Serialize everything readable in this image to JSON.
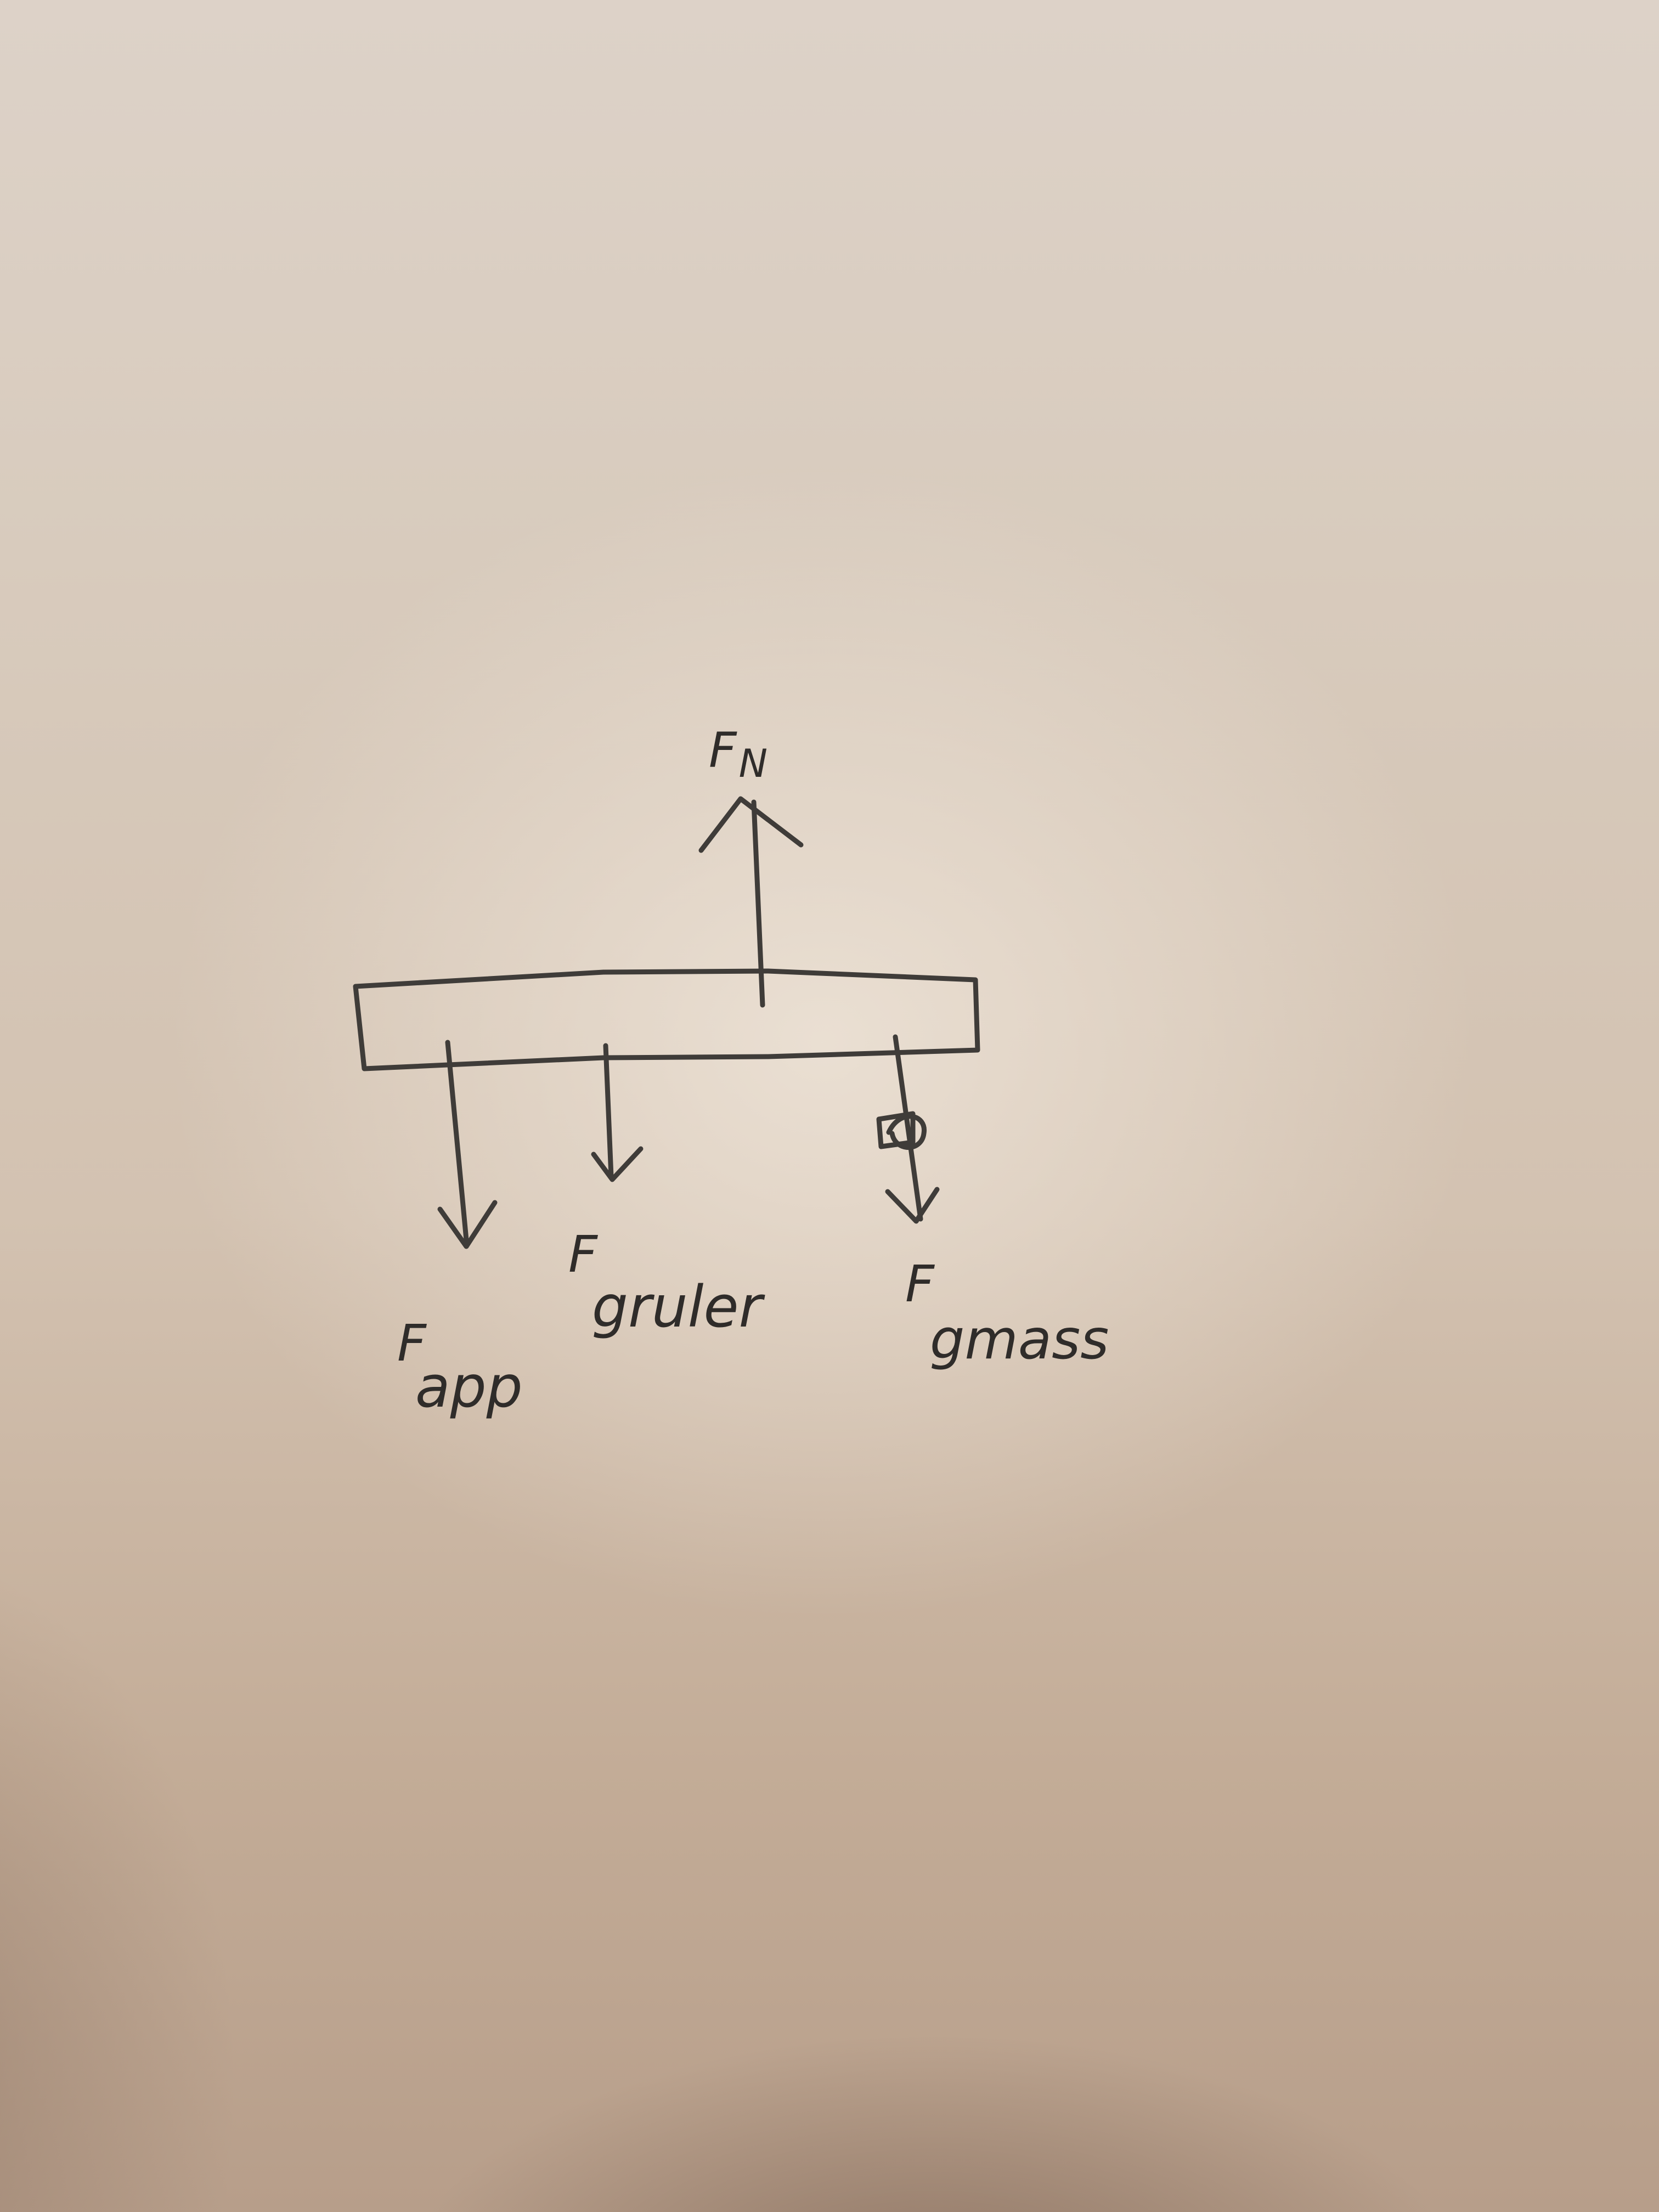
{
  "labels": {
    "normal_force": {
      "main": "F",
      "sub": "N"
    },
    "applied_force": {
      "main": "F",
      "sub": "app"
    },
    "ruler_gravity": {
      "main": "F",
      "sub": "gruler"
    },
    "mass_gravity": {
      "main": "F",
      "sub": "gmass"
    }
  },
  "colors": {
    "paper": "#d8cbbd",
    "ink": "#3f3c39"
  }
}
